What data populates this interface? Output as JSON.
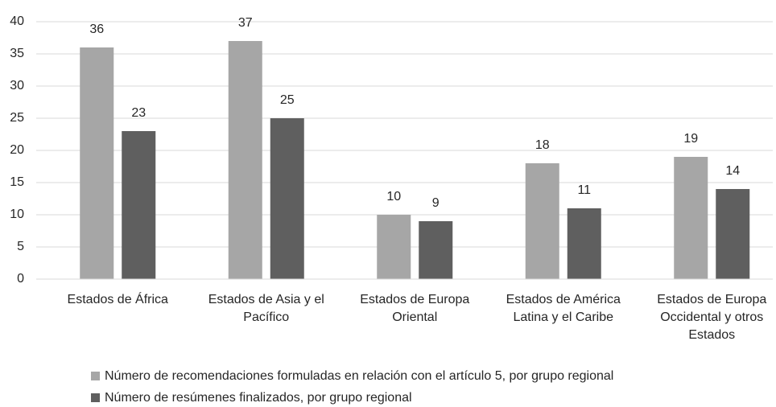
{
  "chart_data": {
    "type": "bar",
    "categories": [
      "Estados de África",
      "Estados de Asia y el Pacífico",
      "Estados de Europa Oriental",
      "Estados de América Latina y el Caribe",
      "Estados de Europa Occidental y otros Estados"
    ],
    "series": [
      {
        "name": "Número de recomendaciones formuladas en relación con el artículo 5, por grupo regional",
        "color": "#a6a6a6",
        "values": [
          36,
          37,
          10,
          18,
          19
        ]
      },
      {
        "name": "Número de resúmenes finalizados, por grupo regional",
        "color": "#5f5f5f",
        "values": [
          23,
          25,
          9,
          11,
          14
        ]
      }
    ],
    "ylim": [
      0,
      40
    ],
    "yticks": [
      0,
      5,
      10,
      15,
      20,
      25,
      30,
      35,
      40
    ],
    "grid": true,
    "legend": "bottom"
  }
}
